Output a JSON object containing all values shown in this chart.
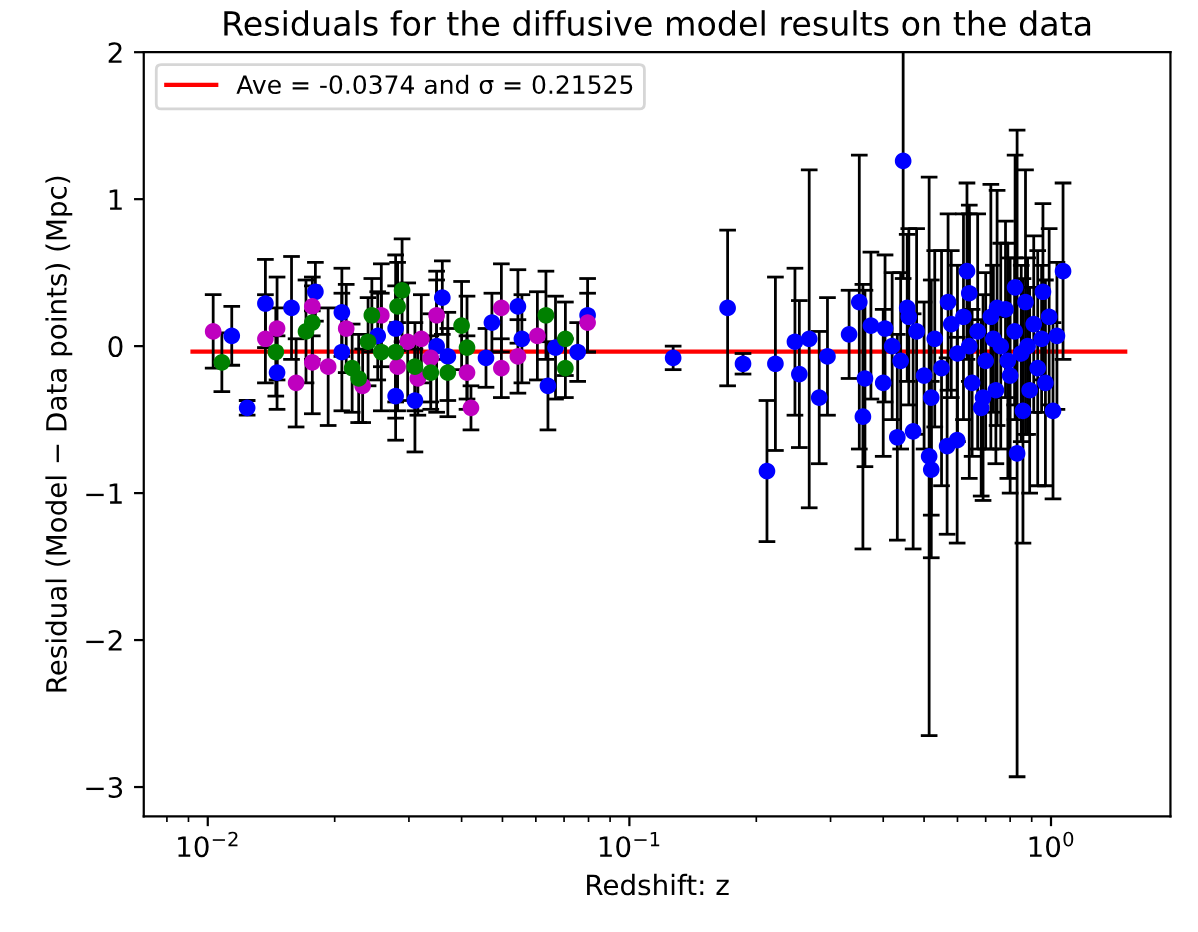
{
  "chart_data": {
    "type": "scatter",
    "title": "Residuals for the diffusive model results on the data",
    "xlabel": "Redshift: z",
    "ylabel": "Residual (Model − Data points) (Mpc)",
    "log": "x",
    "xlim": [
      0.00705,
      1.92
    ],
    "ylim": [
      -3.2,
      2.0
    ],
    "xticks": [
      {
        "value": 0.01,
        "label": "10$^{−2}$"
      },
      {
        "value": 0.1,
        "label": "10$^{−1}$"
      },
      {
        "value": 1,
        "label": "10$^{0}$"
      }
    ],
    "yticks": [
      {
        "value": -3,
        "label": "−3"
      },
      {
        "value": -2,
        "label": "−2"
      },
      {
        "value": -1,
        "label": "−1"
      },
      0,
      1,
      2
    ],
    "legend": "top left",
    "series": [
      {
        "type": "line",
        "name": "Ave = -0.0374 and σ = 0.21525",
        "color": "#ff0000",
        "marker": "none",
        "x": [
          0.0092,
          1.5
        ],
        "values": [
          -0.0374,
          -0.0374
        ]
      },
      {
        "color": "#0000ff",
        "marker": "circle",
        "x": [
          0.0114,
          0.0124,
          0.0137,
          0.0146,
          0.0158,
          0.018,
          0.0208,
          0.0208,
          0.0279,
          0.031,
          0.036,
          0.0349,
          0.0371,
          0.0472,
          0.0544,
          0.0556,
          0.0457,
          0.0641,
          0.0668,
          0.0754,
          0.0796,
          0.0279,
          0.0253,
          0.127,
          0.171,
          0.186,
          0.212,
          0.222,
          0.247,
          0.253,
          0.267,
          0.282,
          0.295,
          0.332,
          0.351,
          0.358,
          0.362,
          0.374,
          0.404,
          0.446,
          0.432,
          0.471,
          0.456,
          0.514,
          0.52,
          0.567,
          0.599,
          0.632,
          0.64,
          0.683,
          0.745,
          0.822,
          0.831,
          0.858,
          0.957,
          1.011,
          1.068,
          1.033,
          0.42,
          0.44,
          0.48,
          0.5,
          0.53,
          0.55,
          0.58,
          0.6,
          0.62,
          0.65,
          0.67,
          0.7,
          0.72,
          0.74,
          0.76,
          0.78,
          0.8,
          0.82,
          0.85,
          0.87,
          0.89,
          0.91,
          0.93,
          0.95,
          0.97,
          0.99,
          0.52,
          0.57,
          0.64,
          0.69,
          0.73,
          0.79,
          0.88,
          0.4,
          0.46
        ],
        "values": [
          0.07,
          -0.42,
          0.29,
          -0.18,
          0.26,
          0.37,
          0.23,
          -0.04,
          -0.34,
          -0.37,
          0.33,
          0,
          -0.07,
          0.16,
          0.27,
          0.05,
          -0.08,
          -0.27,
          -0.01,
          -0.04,
          0.21,
          0.12,
          0.07,
          -0.08,
          0.26,
          -0.12,
          -0.85,
          -0.12,
          0.03,
          -0.19,
          0.05,
          -0.35,
          -0.07,
          0.08,
          0.3,
          -0.48,
          -0.22,
          0.14,
          0.12,
          1.26,
          -0.62,
          -0.58,
          0.26,
          -0.75,
          -0.84,
          -0.68,
          -0.64,
          0.51,
          0.36,
          -0.42,
          0.26,
          0.4,
          -0.73,
          -0.44,
          0.37,
          -0.44,
          0.51,
          0.07,
          0,
          -0.1,
          0.1,
          -0.2,
          0.05,
          -0.15,
          0.15,
          -0.05,
          0.2,
          -0.25,
          0.1,
          -0.1,
          0.2,
          -0.3,
          0,
          0.25,
          -0.2,
          0.1,
          -0.05,
          0.3,
          -0.3,
          0.15,
          -0.15,
          0.05,
          -0.25,
          0.2,
          -0.35,
          0.3,
          0,
          -0.35,
          0.05,
          -0.1,
          0,
          -0.25,
          0.2
        ],
        "errors": [
          0.2,
          0.05,
          0.3,
          0.25,
          0.35,
          0.2,
          0.3,
          0.4,
          0.3,
          0.35,
          0.25,
          0.45,
          0.3,
          0.2,
          0.25,
          0.3,
          0.2,
          0.3,
          0.35,
          0.2,
          0.25,
          0.5,
          0.3,
          0.08,
          0.53,
          0.07,
          0.48,
          0.59,
          0.5,
          0.5,
          1.15,
          0.45,
          0.4,
          0.3,
          1.0,
          0.9,
          0.6,
          0.5,
          0.5,
          0.8,
          0.7,
          0.8,
          0.5,
          1.9,
          0.6,
          0.6,
          0.7,
          0.6,
          0.6,
          0.6,
          0.8,
          0.9,
          2.2,
          0.9,
          0.6,
          0.6,
          0.6,
          0.5,
          0.5,
          0.6,
          0.7,
          0.5,
          0.6,
          0.8,
          0.5,
          0.6,
          0.7,
          0.5,
          0.8,
          0.6,
          0.9,
          0.5,
          0.7,
          0.6,
          0.8,
          0.5,
          0.6,
          0.9,
          0.7,
          0.6,
          0.8,
          0.5,
          0.7,
          0.6,
          0.8,
          0.6,
          0.9,
          0.7,
          0.5,
          0.8,
          0.6,
          0.5,
          0.6
        ]
      },
      {
        "color": "#bf00bf",
        "marker": "circle",
        "x": [
          0.0103,
          0.0137,
          0.0146,
          0.0162,
          0.0177,
          0.0193,
          0.0213,
          0.0233,
          0.0258,
          0.0282,
          0.0298,
          0.0321,
          0.0315,
          0.0349,
          0.0412,
          0.0421,
          0.0497,
          0.0497,
          0.0544,
          0.0605,
          0.0796,
          0.0177,
          0.0338
        ],
        "values": [
          0.1,
          0.05,
          0.12,
          -0.25,
          0.27,
          -0.14,
          0.12,
          -0.27,
          0.21,
          -0.14,
          0.03,
          0.05,
          -0.22,
          0.21,
          -0.18,
          -0.42,
          0.26,
          -0.15,
          -0.07,
          0.07,
          0.16,
          -0.11,
          -0.08
        ],
        "errors": [
          0.25,
          0.3,
          0.35,
          0.3,
          0.2,
          0.4,
          0.3,
          0.25,
          0.35,
          0.3,
          0.4,
          0.3,
          0.25,
          0.3,
          0.25,
          0.15,
          0.3,
          0.2,
          0.25,
          0.3,
          0.2,
          0.35,
          0.3
        ]
      },
      {
        "color": "#008000",
        "marker": "circle",
        "x": [
          0.0108,
          0.0145,
          0.0171,
          0.0177,
          0.022,
          0.0228,
          0.0245,
          0.024,
          0.0258,
          0.0282,
          0.0289,
          0.0279,
          0.031,
          0.0338,
          0.0371,
          0.04,
          0.0412,
          0.0634,
          0.0705,
          0.0705
        ],
        "values": [
          -0.11,
          -0.04,
          0.1,
          0.16,
          -0.15,
          -0.22,
          0.21,
          0.03,
          -0.04,
          0.27,
          0.38,
          -0.04,
          -0.14,
          -0.18,
          -0.18,
          0.14,
          -0.01,
          0.21,
          0.05,
          -0.15
        ],
        "errors": [
          0.2,
          0.3,
          0.35,
          0.25,
          0.3,
          0.3,
          0.25,
          0.3,
          0.4,
          0.3,
          0.35,
          0.45,
          0.3,
          0.25,
          0.3,
          0.3,
          0.35,
          0.3,
          0.25,
          0.2
        ]
      }
    ]
  }
}
